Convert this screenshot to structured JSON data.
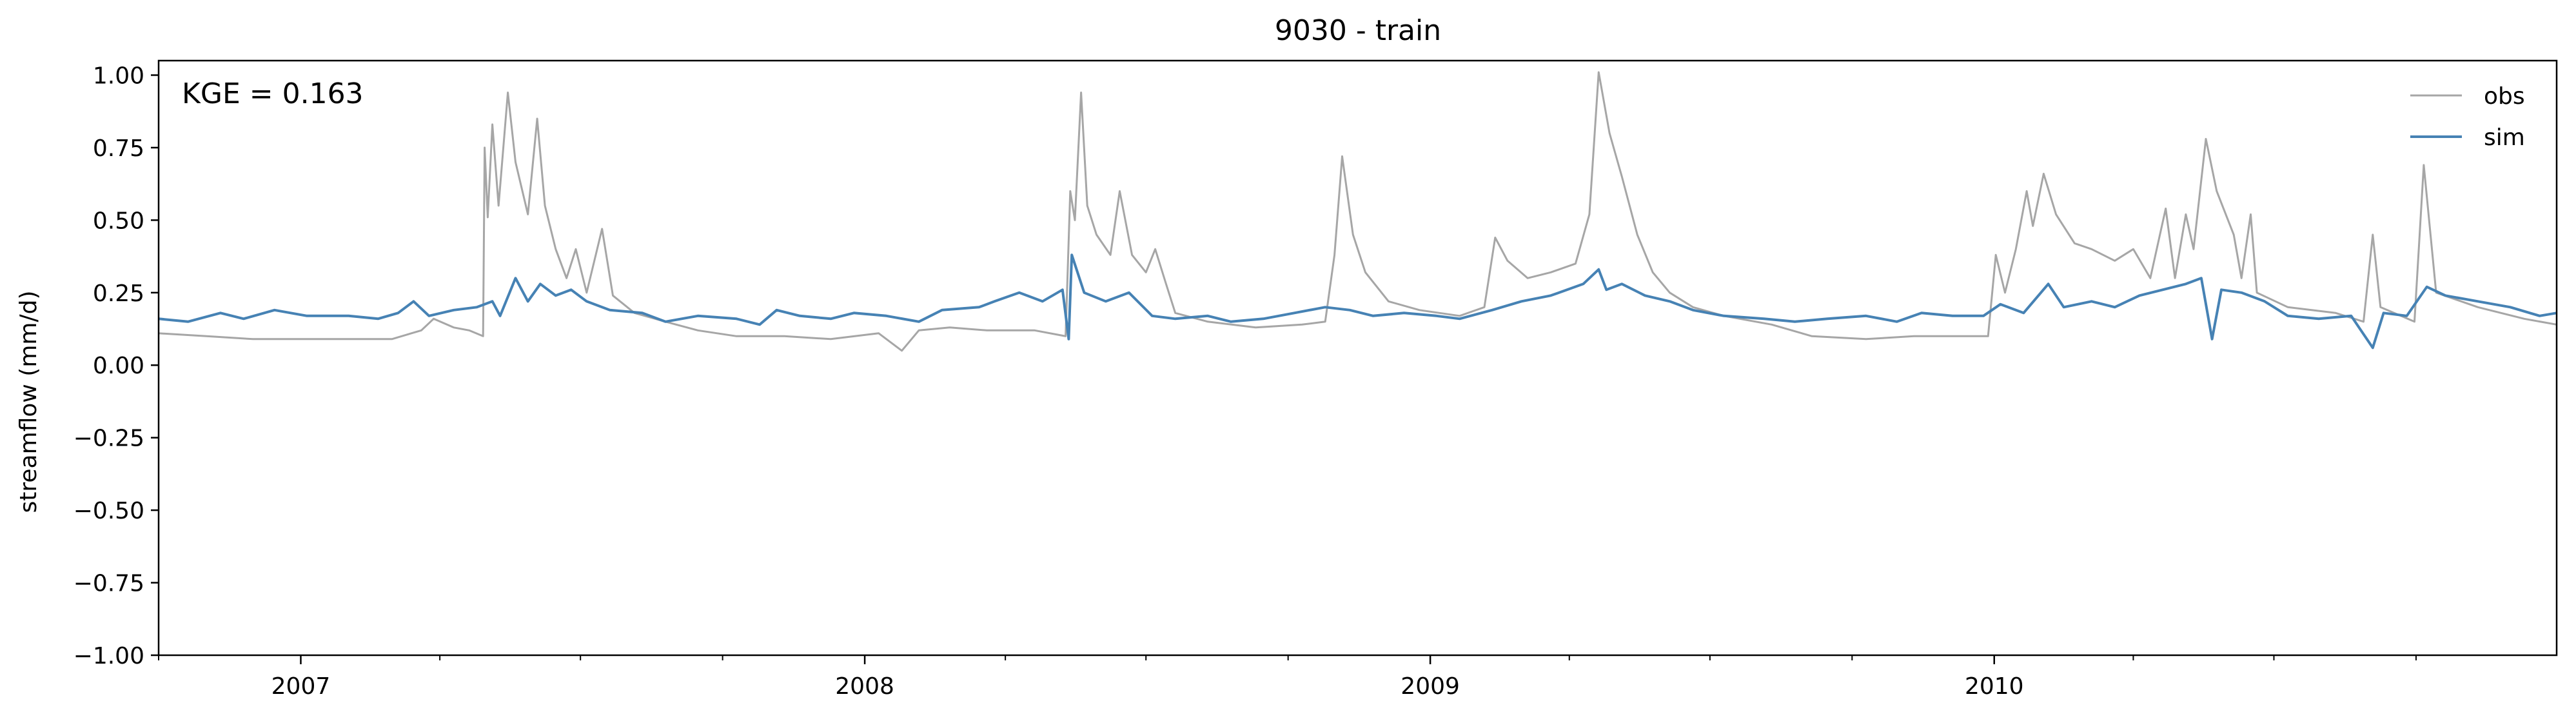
{
  "chart_data": {
    "type": "line",
    "title": "9030 - train",
    "xlabel": "",
    "ylabel": "streamflow (mm/d)",
    "annotation": "KGE = 0.163",
    "x_range": [
      "2006-10-01",
      "2010-12-31"
    ],
    "ylim": [
      -1.0,
      1.05
    ],
    "y_ticks": [
      1.0,
      0.75,
      0.5,
      0.25,
      0.0,
      -0.25,
      -0.5,
      -0.75,
      -1.0
    ],
    "y_tick_labels": [
      "1.00",
      "0.75",
      "0.50",
      "0.25",
      "0.00",
      "−0.25",
      "−0.50",
      "−0.75",
      "−1.00"
    ],
    "x_major_ticks": [
      "2007-01-01",
      "2008-01-01",
      "2009-01-01",
      "2010-01-01"
    ],
    "x_tick_labels": [
      "2007",
      "2008",
      "2009",
      "2010"
    ],
    "x_minor_ticks": [
      "2006-10-01",
      "2007-04-01",
      "2007-07-01",
      "2007-10-01",
      "2008-04-01",
      "2008-07-01",
      "2008-10-01",
      "2009-04-01",
      "2009-07-01",
      "2009-10-01",
      "2010-04-01",
      "2010-07-01",
      "2010-10-01"
    ],
    "grid": false,
    "legend_position": "top-right",
    "series": [
      {
        "name": "obs",
        "color": "#a6a6a6",
        "points": [
          [
            "2006-10-01",
            0.11
          ],
          [
            "2006-11-01",
            0.1
          ],
          [
            "2006-12-01",
            0.09
          ],
          [
            "2007-01-01",
            0.09
          ],
          [
            "2007-02-01",
            0.09
          ],
          [
            "2007-03-01",
            0.09
          ],
          [
            "2007-03-20",
            0.12
          ],
          [
            "2007-03-28",
            0.16
          ],
          [
            "2007-04-10",
            0.13
          ],
          [
            "2007-04-20",
            0.12
          ],
          [
            "2007-04-29",
            0.1
          ],
          [
            "2007-04-30",
            0.75
          ],
          [
            "2007-05-02",
            0.51
          ],
          [
            "2007-05-05",
            0.83
          ],
          [
            "2007-05-09",
            0.55
          ],
          [
            "2007-05-15",
            0.94
          ],
          [
            "2007-05-20",
            0.7
          ],
          [
            "2007-05-28",
            0.52
          ],
          [
            "2007-06-03",
            0.85
          ],
          [
            "2007-06-08",
            0.55
          ],
          [
            "2007-06-15",
            0.4
          ],
          [
            "2007-06-22",
            0.3
          ],
          [
            "2007-06-28",
            0.4
          ],
          [
            "2007-07-05",
            0.25
          ],
          [
            "2007-07-15",
            0.47
          ],
          [
            "2007-07-22",
            0.24
          ],
          [
            "2007-08-05",
            0.18
          ],
          [
            "2007-08-25",
            0.15
          ],
          [
            "2007-09-15",
            0.12
          ],
          [
            "2007-10-10",
            0.1
          ],
          [
            "2007-11-10",
            0.1
          ],
          [
            "2007-12-10",
            0.09
          ],
          [
            "2008-01-10",
            0.11
          ],
          [
            "2008-01-25",
            0.05
          ],
          [
            "2008-02-05",
            0.12
          ],
          [
            "2008-02-25",
            0.13
          ],
          [
            "2008-03-20",
            0.12
          ],
          [
            "2008-04-20",
            0.12
          ],
          [
            "2008-05-10",
            0.1
          ],
          [
            "2008-05-13",
            0.6
          ],
          [
            "2008-05-16",
            0.5
          ],
          [
            "2008-05-20",
            0.94
          ],
          [
            "2008-05-24",
            0.55
          ],
          [
            "2008-05-30",
            0.45
          ],
          [
            "2008-06-08",
            0.38
          ],
          [
            "2008-06-14",
            0.6
          ],
          [
            "2008-06-22",
            0.38
          ],
          [
            "2008-07-01",
            0.32
          ],
          [
            "2008-07-07",
            0.4
          ],
          [
            "2008-07-14",
            0.28
          ],
          [
            "2008-07-20",
            0.18
          ],
          [
            "2008-08-10",
            0.15
          ],
          [
            "2008-09-10",
            0.13
          ],
          [
            "2008-10-10",
            0.14
          ],
          [
            "2008-10-25",
            0.15
          ],
          [
            "2008-10-31",
            0.38
          ],
          [
            "2008-11-05",
            0.72
          ],
          [
            "2008-11-12",
            0.45
          ],
          [
            "2008-11-20",
            0.32
          ],
          [
            "2008-12-05",
            0.22
          ],
          [
            "2008-12-25",
            0.19
          ],
          [
            "2009-01-20",
            0.17
          ],
          [
            "2009-02-05",
            0.2
          ],
          [
            "2009-02-12",
            0.44
          ],
          [
            "2009-02-20",
            0.36
          ],
          [
            "2009-03-05",
            0.3
          ],
          [
            "2009-03-20",
            0.32
          ],
          [
            "2009-04-05",
            0.35
          ],
          [
            "2009-04-14",
            0.52
          ],
          [
            "2009-04-20",
            1.01
          ],
          [
            "2009-04-27",
            0.8
          ],
          [
            "2009-05-05",
            0.65
          ],
          [
            "2009-05-15",
            0.45
          ],
          [
            "2009-05-25",
            0.32
          ],
          [
            "2009-06-05",
            0.25
          ],
          [
            "2009-06-20",
            0.2
          ],
          [
            "2009-07-10",
            0.17
          ],
          [
            "2009-08-10",
            0.14
          ],
          [
            "2009-09-05",
            0.1
          ],
          [
            "2009-10-10",
            0.09
          ],
          [
            "2009-11-10",
            0.1
          ],
          [
            "2009-12-10",
            0.1
          ],
          [
            "2009-12-28",
            0.1
          ],
          [
            "2010-01-02",
            0.38
          ],
          [
            "2010-01-08",
            0.25
          ],
          [
            "2010-01-15",
            0.4
          ],
          [
            "2010-01-22",
            0.6
          ],
          [
            "2010-01-26",
            0.48
          ],
          [
            "2010-02-02",
            0.66
          ],
          [
            "2010-02-10",
            0.52
          ],
          [
            "2010-02-22",
            0.42
          ],
          [
            "2010-03-05",
            0.4
          ],
          [
            "2010-03-20",
            0.36
          ],
          [
            "2010-04-01",
            0.4
          ],
          [
            "2010-04-12",
            0.3
          ],
          [
            "2010-04-22",
            0.54
          ],
          [
            "2010-04-28",
            0.3
          ],
          [
            "2010-05-05",
            0.52
          ],
          [
            "2010-05-10",
            0.4
          ],
          [
            "2010-05-18",
            0.78
          ],
          [
            "2010-05-25",
            0.6
          ],
          [
            "2010-06-05",
            0.45
          ],
          [
            "2010-06-10",
            0.3
          ],
          [
            "2010-06-16",
            0.52
          ],
          [
            "2010-06-20",
            0.25
          ],
          [
            "2010-07-10",
            0.2
          ],
          [
            "2010-08-10",
            0.18
          ],
          [
            "2010-08-28",
            0.15
          ],
          [
            "2010-09-03",
            0.45
          ],
          [
            "2010-09-08",
            0.2
          ],
          [
            "2010-09-30",
            0.15
          ],
          [
            "2010-10-06",
            0.69
          ],
          [
            "2010-10-14",
            0.25
          ],
          [
            "2010-11-10",
            0.2
          ],
          [
            "2010-12-10",
            0.16
          ],
          [
            "2010-12-31",
            0.14
          ]
        ]
      },
      {
        "name": "sim",
        "color": "#4682b4",
        "points": [
          [
            "2006-10-01",
            0.16
          ],
          [
            "2006-10-20",
            0.15
          ],
          [
            "2006-11-10",
            0.18
          ],
          [
            "2006-11-25",
            0.16
          ],
          [
            "2006-12-15",
            0.19
          ],
          [
            "2007-01-05",
            0.17
          ],
          [
            "2007-02-01",
            0.17
          ],
          [
            "2007-02-20",
            0.16
          ],
          [
            "2007-03-05",
            0.18
          ],
          [
            "2007-03-15",
            0.22
          ],
          [
            "2007-03-25",
            0.17
          ],
          [
            "2007-04-10",
            0.19
          ],
          [
            "2007-04-25",
            0.2
          ],
          [
            "2007-05-05",
            0.22
          ],
          [
            "2007-05-10",
            0.17
          ],
          [
            "2007-05-20",
            0.3
          ],
          [
            "2007-05-28",
            0.22
          ],
          [
            "2007-06-05",
            0.28
          ],
          [
            "2007-06-15",
            0.24
          ],
          [
            "2007-06-25",
            0.26
          ],
          [
            "2007-07-05",
            0.22
          ],
          [
            "2007-07-20",
            0.19
          ],
          [
            "2007-08-10",
            0.18
          ],
          [
            "2007-08-25",
            0.15
          ],
          [
            "2007-09-15",
            0.17
          ],
          [
            "2007-10-10",
            0.16
          ],
          [
            "2007-10-25",
            0.14
          ],
          [
            "2007-11-05",
            0.19
          ],
          [
            "2007-11-20",
            0.17
          ],
          [
            "2007-12-10",
            0.16
          ],
          [
            "2007-12-25",
            0.18
          ],
          [
            "2008-01-15",
            0.17
          ],
          [
            "2008-02-05",
            0.15
          ],
          [
            "2008-02-20",
            0.19
          ],
          [
            "2008-03-15",
            0.2
          ],
          [
            "2008-03-25",
            0.22
          ],
          [
            "2008-04-10",
            0.25
          ],
          [
            "2008-04-25",
            0.22
          ],
          [
            "2008-05-08",
            0.26
          ],
          [
            "2008-05-12",
            0.09
          ],
          [
            "2008-05-14",
            0.38
          ],
          [
            "2008-05-22",
            0.25
          ],
          [
            "2008-06-05",
            0.22
          ],
          [
            "2008-06-20",
            0.25
          ],
          [
            "2008-07-05",
            0.17
          ],
          [
            "2008-07-20",
            0.16
          ],
          [
            "2008-08-10",
            0.17
          ],
          [
            "2008-08-25",
            0.15
          ],
          [
            "2008-09-15",
            0.16
          ],
          [
            "2008-10-05",
            0.18
          ],
          [
            "2008-10-25",
            0.2
          ],
          [
            "2008-11-10",
            0.19
          ],
          [
            "2008-11-25",
            0.17
          ],
          [
            "2008-12-15",
            0.18
          ],
          [
            "2009-01-05",
            0.17
          ],
          [
            "2009-01-20",
            0.16
          ],
          [
            "2009-02-10",
            0.19
          ],
          [
            "2009-03-01",
            0.22
          ],
          [
            "2009-03-20",
            0.24
          ],
          [
            "2009-04-10",
            0.28
          ],
          [
            "2009-04-20",
            0.33
          ],
          [
            "2009-04-25",
            0.26
          ],
          [
            "2009-05-05",
            0.28
          ],
          [
            "2009-05-20",
            0.24
          ],
          [
            "2009-06-05",
            0.22
          ],
          [
            "2009-06-20",
            0.19
          ],
          [
            "2009-07-10",
            0.17
          ],
          [
            "2009-08-05",
            0.16
          ],
          [
            "2009-08-25",
            0.15
          ],
          [
            "2009-09-15",
            0.16
          ],
          [
            "2009-10-10",
            0.17
          ],
          [
            "2009-10-30",
            0.15
          ],
          [
            "2009-11-15",
            0.18
          ],
          [
            "2009-12-05",
            0.17
          ],
          [
            "2009-12-25",
            0.17
          ],
          [
            "2010-01-05",
            0.21
          ],
          [
            "2010-01-20",
            0.18
          ],
          [
            "2010-02-05",
            0.28
          ],
          [
            "2010-02-15",
            0.2
          ],
          [
            "2010-03-05",
            0.22
          ],
          [
            "2010-03-20",
            0.2
          ],
          [
            "2010-04-05",
            0.24
          ],
          [
            "2010-04-20",
            0.26
          ],
          [
            "2010-05-05",
            0.28
          ],
          [
            "2010-05-15",
            0.3
          ],
          [
            "2010-05-22",
            0.09
          ],
          [
            "2010-05-28",
            0.26
          ],
          [
            "2010-06-10",
            0.25
          ],
          [
            "2010-06-25",
            0.22
          ],
          [
            "2010-07-10",
            0.17
          ],
          [
            "2010-07-30",
            0.16
          ],
          [
            "2010-08-20",
            0.17
          ],
          [
            "2010-09-03",
            0.06
          ],
          [
            "2010-09-10",
            0.18
          ],
          [
            "2010-09-25",
            0.17
          ],
          [
            "2010-10-08",
            0.27
          ],
          [
            "2010-10-20",
            0.24
          ],
          [
            "2010-11-10",
            0.22
          ],
          [
            "2010-12-01",
            0.2
          ],
          [
            "2010-12-20",
            0.17
          ],
          [
            "2010-12-31",
            0.18
          ]
        ]
      }
    ]
  }
}
